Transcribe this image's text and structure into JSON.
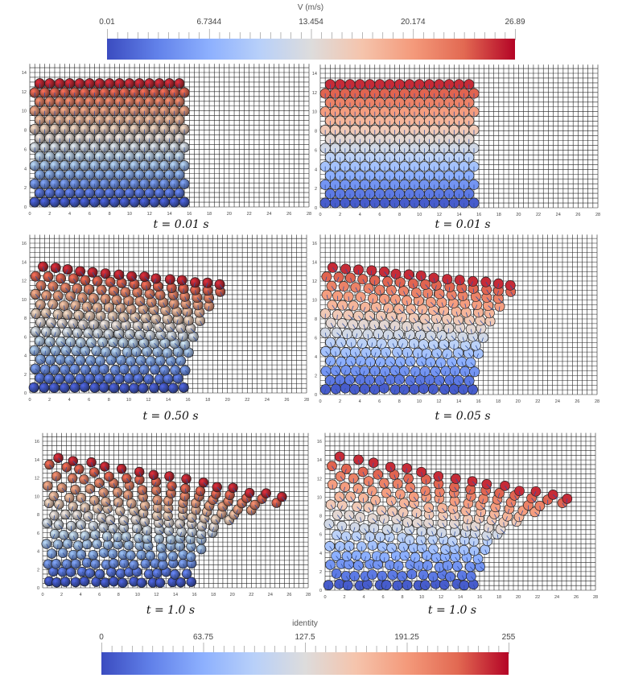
{
  "colorbars": [
    {
      "title": "V (m/s)",
      "ticks": [
        "0.01",
        "6.7344",
        "13.454",
        "20.174",
        "26.89"
      ],
      "range": [
        0.01,
        26.89
      ],
      "colormap": "coolwarm"
    },
    {
      "title": "identity",
      "ticks": [
        "0",
        "63.75",
        "127.5",
        "191.25",
        "255"
      ],
      "range": [
        0,
        255
      ],
      "colormap": "coolwarm"
    }
  ],
  "colormap_stops": [
    "#3b4cc0",
    "#6282ea",
    "#8db0fe",
    "#b8d0f9",
    "#dddcdc",
    "#f5c4ac",
    "#f49a7b",
    "#e26952",
    "#b40426"
  ],
  "chart_data": [
    {
      "type": "scatter",
      "title": "t = 0.01 s",
      "xlim": [
        0,
        28
      ],
      "ylim": [
        0,
        14
      ],
      "x_ticks": [
        0,
        2,
        4,
        6,
        8,
        10,
        12,
        14,
        16,
        18,
        20,
        22,
        24,
        26,
        28
      ],
      "y_ticks": [
        0,
        2,
        4,
        6,
        8,
        10,
        12,
        14
      ],
      "grid": true,
      "shading": "shaded",
      "block": {
        "columns": 16,
        "rows": 14
      },
      "runout": 16
    },
    {
      "type": "scatter",
      "title": "t = 0.01 s",
      "xlim": [
        0,
        28
      ],
      "ylim": [
        0,
        14
      ],
      "x_ticks": [
        0,
        2,
        4,
        6,
        8,
        10,
        12,
        14,
        16,
        18,
        20,
        22,
        24,
        26,
        28
      ],
      "y_ticks": [
        0,
        2,
        4,
        6,
        8,
        10,
        12,
        14
      ],
      "grid": true,
      "shading": "flat",
      "block": {
        "columns": 16,
        "rows": 14
      },
      "runout": 16
    },
    {
      "type": "scatter",
      "title": "t = 0.50 s",
      "xlim": [
        0,
        28
      ],
      "ylim": [
        0,
        16
      ],
      "x_ticks": [
        0,
        2,
        4,
        6,
        8,
        10,
        12,
        14,
        16,
        18,
        20,
        22,
        24,
        26,
        28
      ],
      "y_ticks": [
        0,
        2,
        4,
        6,
        8,
        10,
        12,
        14,
        16
      ],
      "grid": true,
      "shading": "shaded",
      "block": {
        "columns": 16,
        "rows": 14
      },
      "runout": 21
    },
    {
      "type": "scatter",
      "title": "t = 0.05 s",
      "xlim": [
        0,
        28
      ],
      "ylim": [
        0,
        16
      ],
      "x_ticks": [
        0,
        2,
        4,
        6,
        8,
        10,
        12,
        14,
        16,
        18,
        20,
        22,
        24,
        26,
        28
      ],
      "y_ticks": [
        0,
        2,
        4,
        6,
        8,
        10,
        12,
        14,
        16
      ],
      "grid": true,
      "shading": "flat",
      "block": {
        "columns": 16,
        "rows": 14
      },
      "runout": 21
    },
    {
      "type": "scatter",
      "title": "t = 1.0 s",
      "xlim": [
        0,
        28
      ],
      "ylim": [
        0,
        16
      ],
      "x_ticks": [
        0,
        2,
        4,
        6,
        8,
        10,
        12,
        14,
        16,
        18,
        20,
        22,
        24,
        26,
        28
      ],
      "y_ticks": [
        0,
        2,
        4,
        6,
        8,
        10,
        12,
        14,
        16
      ],
      "grid": true,
      "shading": "shaded",
      "block": {
        "columns": 16,
        "rows": 14
      },
      "runout": 28
    },
    {
      "type": "scatter",
      "title": "t = 1.0 s",
      "xlim": [
        0,
        28
      ],
      "ylim": [
        0,
        16
      ],
      "x_ticks": [
        0,
        2,
        4,
        6,
        8,
        10,
        12,
        14,
        16,
        18,
        20,
        22,
        24,
        26,
        28
      ],
      "y_ticks": [
        0,
        2,
        4,
        6,
        8,
        10,
        12,
        14,
        16
      ],
      "grid": true,
      "shading": "flat",
      "block": {
        "columns": 16,
        "rows": 14
      },
      "runout": 28
    }
  ]
}
